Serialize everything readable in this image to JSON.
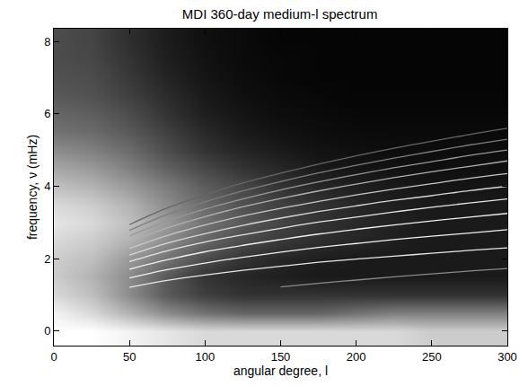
{
  "chart_data": {
    "type": "heatmap",
    "title": "MDI 360-day medium-l spectrum",
    "x_label": "angular degree, l",
    "y_label": "frequency, ν (mHz)",
    "xlim": [
      0,
      300
    ],
    "ylim": [
      -0.4,
      8.35
    ],
    "xticks": [
      0,
      50,
      100,
      150,
      200,
      250,
      300
    ],
    "yticks": [
      0,
      2,
      4,
      6,
      8
    ],
    "grid": false,
    "x": [
      0,
      25,
      50,
      75,
      100,
      125,
      150,
      175,
      200,
      225,
      250,
      275,
      300
    ],
    "y": [
      -0.5,
      0,
      0.5,
      1,
      1.5,
      2,
      2.5,
      3,
      3.5,
      4,
      4.5,
      5,
      5.5,
      6,
      6.5,
      7,
      7.5,
      8,
      8.5
    ],
    "zlim": [
      0,
      1
    ],
    "z": [
      [
        1,
        1,
        0.95,
        0.9,
        0.85,
        0.85,
        0.85,
        0.85,
        0.85,
        0.85,
        0.8,
        0.8,
        0.8
      ],
      [
        1,
        1,
        0.95,
        0.9,
        0.85,
        0.85,
        0.85,
        0.85,
        0.85,
        0.85,
        0.8,
        0.8,
        0.8
      ],
      [
        0.95,
        0.85,
        0.7,
        0.55,
        0.45,
        0.4,
        0.4,
        0.4,
        0.45,
        0.5,
        0.5,
        0.5,
        0.5
      ],
      [
        0.85,
        0.75,
        0.55,
        0.35,
        0.25,
        0.2,
        0.2,
        0.2,
        0.2,
        0.2,
        0.2,
        0.2,
        0.2
      ],
      [
        0.8,
        0.7,
        0.55,
        0.35,
        0.2,
        0.15,
        0.12,
        0.1,
        0.1,
        0.1,
        0.1,
        0.1,
        0.1
      ],
      [
        0.8,
        0.75,
        0.6,
        0.45,
        0.3,
        0.2,
        0.15,
        0.12,
        0.1,
        0.1,
        0.1,
        0.1,
        0.1
      ],
      [
        0.85,
        0.8,
        0.7,
        0.55,
        0.4,
        0.3,
        0.22,
        0.18,
        0.15,
        0.12,
        0.1,
        0.1,
        0.1
      ],
      [
        0.9,
        0.85,
        0.75,
        0.6,
        0.45,
        0.35,
        0.27,
        0.2,
        0.16,
        0.13,
        0.1,
        0.1,
        0.1
      ],
      [
        0.85,
        0.8,
        0.7,
        0.55,
        0.42,
        0.32,
        0.25,
        0.2,
        0.15,
        0.12,
        0.1,
        0.1,
        0.1
      ],
      [
        0.75,
        0.7,
        0.6,
        0.48,
        0.36,
        0.28,
        0.2,
        0.15,
        0.12,
        0.1,
        0.08,
        0.08,
        0.08
      ],
      [
        0.65,
        0.6,
        0.5,
        0.38,
        0.28,
        0.2,
        0.15,
        0.1,
        0.08,
        0.07,
        0.06,
        0.06,
        0.06
      ],
      [
        0.55,
        0.5,
        0.42,
        0.3,
        0.2,
        0.14,
        0.1,
        0.07,
        0.06,
        0.05,
        0.05,
        0.05,
        0.05
      ],
      [
        0.45,
        0.42,
        0.35,
        0.25,
        0.16,
        0.1,
        0.07,
        0.05,
        0.04,
        0.04,
        0.04,
        0.04,
        0.04
      ],
      [
        0.4,
        0.37,
        0.3,
        0.2,
        0.12,
        0.08,
        0.05,
        0.04,
        0.03,
        0.03,
        0.03,
        0.03,
        0.03
      ],
      [
        0.35,
        0.32,
        0.25,
        0.17,
        0.1,
        0.06,
        0.04,
        0.03,
        0.02,
        0.02,
        0.02,
        0.02,
        0.02
      ],
      [
        0.32,
        0.3,
        0.22,
        0.14,
        0.08,
        0.05,
        0.03,
        0.02,
        0.02,
        0.02,
        0.02,
        0.02,
        0.02
      ],
      [
        0.3,
        0.28,
        0.2,
        0.12,
        0.07,
        0.04,
        0.03,
        0.02,
        0.02,
        0.02,
        0.02,
        0.02,
        0.02
      ],
      [
        0.3,
        0.27,
        0.18,
        0.11,
        0.06,
        0.04,
        0.02,
        0.02,
        0.02,
        0.02,
        0.02,
        0.02,
        0.02
      ],
      [
        0.3,
        0.27,
        0.18,
        0.11,
        0.06,
        0.04,
        0.02,
        0.02,
        0.02,
        0.02,
        0.02,
        0.02,
        0.02
      ]
    ],
    "series": [
      {
        "type": "line",
        "color": "#8a8a8a",
        "x": [
          150,
          175,
          200,
          225,
          250,
          275,
          300
        ],
        "values": [
          1.22,
          1.32,
          1.41,
          1.5,
          1.58,
          1.66,
          1.73
        ]
      },
      {
        "type": "line",
        "color": "#e8e8e8",
        "x": [
          50,
          75,
          100,
          125,
          150,
          175,
          200,
          225,
          250,
          275,
          300
        ],
        "values": [
          1.21,
          1.4,
          1.55,
          1.68,
          1.79,
          1.9,
          1.99,
          2.07,
          2.15,
          2.23,
          2.3
        ]
      },
      {
        "type": "line",
        "color": "#f0f0f0",
        "x": [
          50,
          75,
          100,
          125,
          150,
          175,
          200,
          225,
          250,
          275,
          300
        ],
        "values": [
          1.47,
          1.7,
          1.88,
          2.04,
          2.18,
          2.31,
          2.42,
          2.53,
          2.62,
          2.71,
          2.8
        ]
      },
      {
        "type": "line",
        "color": "#f0f0f0",
        "x": [
          50,
          75,
          100,
          125,
          150,
          175,
          200,
          225,
          250,
          275,
          300
        ],
        "values": [
          1.71,
          1.97,
          2.19,
          2.37,
          2.53,
          2.68,
          2.81,
          2.93,
          3.04,
          3.15,
          3.25
        ]
      },
      {
        "type": "line",
        "color": "#e6e6e6",
        "x": [
          50,
          75,
          100,
          125,
          150,
          175,
          200,
          225,
          250,
          275,
          300
        ],
        "values": [
          1.92,
          2.22,
          2.46,
          2.66,
          2.84,
          3.01,
          3.15,
          3.29,
          3.42,
          3.54,
          3.65
        ]
      },
      {
        "type": "line",
        "color": "#d8d8d8",
        "x": [
          50,
          75,
          100,
          125,
          150,
          175,
          200,
          225,
          250,
          275,
          300
        ],
        "values": [
          2.1,
          2.43,
          2.69,
          2.92,
          3.12,
          3.3,
          3.46,
          3.61,
          3.74,
          3.88,
          4.0
        ]
      },
      {
        "type": "line",
        "color": "#c8c8c8",
        "x": [
          50,
          75,
          100,
          125,
          150,
          175,
          200,
          225,
          250,
          275,
          300
        ],
        "values": [
          2.28,
          2.64,
          2.93,
          3.18,
          3.39,
          3.58,
          3.76,
          3.92,
          4.07,
          4.22,
          4.35
        ]
      },
      {
        "type": "line",
        "color": "#b0b0b0",
        "x": [
          50,
          75,
          100,
          125,
          150,
          175,
          200,
          225,
          250,
          275,
          300
        ],
        "values": [
          2.47,
          2.85,
          3.16,
          3.43,
          3.66,
          3.87,
          4.06,
          4.24,
          4.4,
          4.55,
          4.7
        ]
      },
      {
        "type": "line",
        "color": "#989898",
        "x": [
          50,
          75,
          100,
          125,
          150,
          175,
          200,
          225,
          250,
          275,
          300
        ],
        "values": [
          2.63,
          3.04,
          3.37,
          3.65,
          3.9,
          4.12,
          4.32,
          4.51,
          4.68,
          4.85,
          5.0
        ]
      },
      {
        "type": "line",
        "color": "#7e7e7e",
        "x": [
          50,
          75,
          100,
          125,
          150,
          175,
          200,
          225,
          250,
          275,
          300
        ],
        "values": [
          2.78,
          3.22,
          3.57,
          3.87,
          4.13,
          4.37,
          4.58,
          4.78,
          4.96,
          5.14,
          5.3
        ]
      },
      {
        "type": "line",
        "color": "#666666",
        "x": [
          50,
          75,
          100,
          125,
          150,
          175,
          200,
          225,
          250,
          275,
          300
        ],
        "values": [
          2.94,
          3.4,
          3.77,
          4.09,
          4.36,
          4.61,
          4.84,
          5.05,
          5.24,
          5.43,
          5.6
        ]
      }
    ]
  }
}
